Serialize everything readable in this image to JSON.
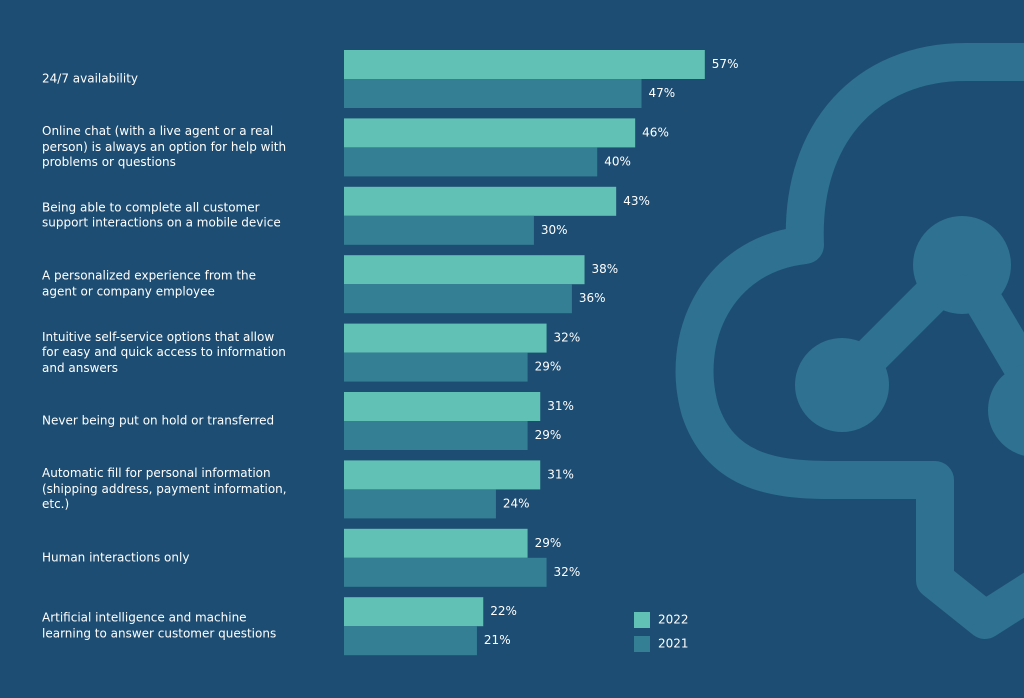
{
  "chart_data": {
    "type": "bar",
    "orientation": "horizontal",
    "categories": [
      "24/7 availability",
      "Online chat (with a live agent or a real person) is always an option for help with problems or questions",
      "Being able to complete all customer support interactions on a mobile device",
      "A personalized experience from the agent or company employee",
      "Intuitive self-service options that allow for easy and quick access to information and answers",
      "Never being put on hold or transferred",
      "Automatic fill for personal information (shipping address, payment information, etc.)",
      "Human interactions only",
      "Artificial intelligence and machine learning to answer customer questions"
    ],
    "series": [
      {
        "name": "2022",
        "color": "#62c1b5",
        "values": [
          57,
          46,
          43,
          38,
          32,
          31,
          31,
          29,
          22
        ],
        "value_labels": [
          "57%",
          "46%",
          "43%",
          "38%",
          "32%",
          "31%",
          "31%",
          "29%",
          "22%"
        ]
      },
      {
        "name": "2021",
        "color": "#357f95",
        "values": [
          47,
          40,
          30,
          36,
          29,
          29,
          24,
          32,
          21
        ],
        "value_labels": [
          "47%",
          "40%",
          "30%",
          "36%",
          "29%",
          "29%",
          "24%",
          "32%",
          "21%"
        ]
      }
    ],
    "legend": "bottom-right"
  }
}
